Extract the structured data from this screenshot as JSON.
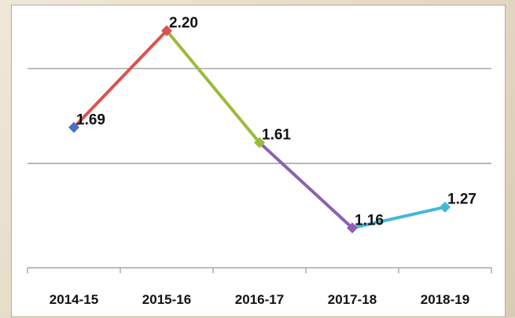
{
  "chart_data": {
    "type": "line",
    "categories": [
      "2014-15",
      "2015-16",
      "2016-17",
      "2017-18",
      "2018-19"
    ],
    "values": [
      1.69,
      2.2,
      1.61,
      1.16,
      1.27
    ],
    "value_labels": [
      "1.69",
      "2.20",
      "1.61",
      "1.16",
      "1.27"
    ],
    "segment_colors": [
      "#d9534f",
      "#9bbb3b",
      "#8e5fb3",
      "#45b8d6"
    ],
    "marker_colors": [
      "#4472c4",
      "#d9534f",
      "#9bbb3b",
      "#8e5fb3",
      "#45b8d6"
    ],
    "ylim": [
      0.95,
      2.25
    ],
    "gridlines": [
      1.5,
      2.0
    ],
    "grid": true,
    "legend": "none"
  }
}
